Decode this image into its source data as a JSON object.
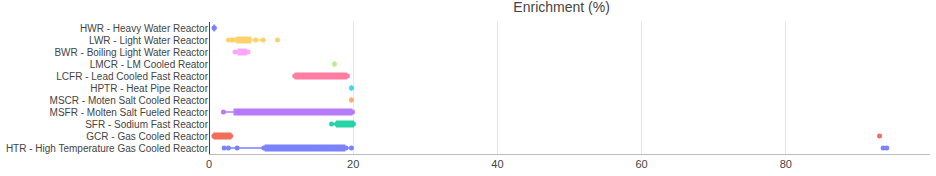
{
  "chart_data": {
    "type": "box",
    "title": "Enrichment (%)",
    "orientation": "horizontal",
    "grid": true,
    "xlim": [
      0,
      100
    ],
    "xticks": [
      0,
      20,
      40,
      60,
      80
    ],
    "series": [
      {
        "name": "HWR - Heavy Water Reactor",
        "color": "#636efa",
        "values": [
          0.71,
          0.72
        ]
      },
      {
        "name": "LWR - Light Water Reactor",
        "color": "#fecb52",
        "values": [
          2.7,
          3.2,
          3.5,
          4,
          4.3,
          4.5,
          4.8,
          4.95,
          5,
          5.5,
          6.5,
          7.5,
          9.5
        ]
      },
      {
        "name": "BWR - Boiling Light Water Reactor",
        "color": "#ff97ff",
        "values": [
          3.6,
          4,
          4.2,
          4.5,
          4.9,
          5.2,
          5.4
        ]
      },
      {
        "name": "LMCR - LM Cooled Reator",
        "color": "#b6e880",
        "values": [
          17.4
        ]
      },
      {
        "name": "LCFR - Lead Cooled Fast Reactor",
        "color": "#ff6692",
        "values": [
          11.9,
          12,
          15.2,
          19,
          19.2
        ]
      },
      {
        "name": "HPTR - Heat Pipe Reactor",
        "color": "#19d3f3",
        "values": [
          19.75
        ]
      },
      {
        "name": "MSCR - Moten Salt Cooled Reactor",
        "color": "#ffa15a",
        "values": [
          19.75
        ]
      },
      {
        "name": "MSFR - Molten Salt Fueled Reactor",
        "color": "#ab63fa",
        "values": [
          2,
          4,
          11.9,
          19.75,
          19.9
        ]
      },
      {
        "name": "SFR - Sodium Fast Reactor",
        "color": "#00cc96",
        "values": [
          17,
          17.7,
          19.5,
          19.9,
          20,
          20
        ]
      },
      {
        "name": "GCR - Gas Cooled Reactor",
        "color": "#ef553b",
        "values": [
          0.7,
          0.71,
          1,
          2.9,
          3,
          93
        ]
      },
      {
        "name": "HTR - High Temperature Gas Cooled Reactor",
        "color": "#636efa",
        "values": [
          2.1,
          2.7,
          3.9,
          7.6,
          8.4,
          9.1,
          10,
          14.3,
          15,
          16.7,
          18.2,
          19,
          19.75,
          93.5,
          94
        ]
      }
    ]
  }
}
